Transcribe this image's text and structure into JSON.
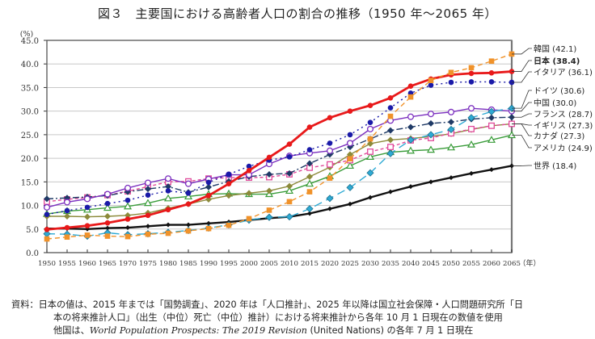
{
  "chart_data": {
    "type": "line",
    "title": "図３　主要国における高齢者人口の割合の推移（1950 年～2065 年）",
    "ylabel": "(%)",
    "xlabel": "（年）",
    "ylim": [
      0,
      45
    ],
    "yticks": [
      "0.0",
      "5.0",
      "10.0",
      "15.0",
      "20.0",
      "25.0",
      "30.0",
      "35.0",
      "40.0",
      "45.0"
    ],
    "x": [
      1950,
      1955,
      1960,
      1965,
      1970,
      1975,
      1980,
      1985,
      1990,
      1995,
      2000,
      2005,
      2010,
      2015,
      2020,
      2025,
      2030,
      2035,
      2040,
      2045,
      2050,
      2055,
      2060,
      2065
    ],
    "grid": "horizontal",
    "legend": "right-side labels",
    "series": [
      {
        "name": "韓国",
        "label": "韓国 (42.1)",
        "color": "#f0922a",
        "dash": "6,4",
        "marker": "square-filled",
        "values": [
          2.9,
          3.3,
          3.7,
          3.5,
          3.4,
          3.9,
          4.1,
          4.6,
          5.1,
          5.8,
          7.2,
          9.0,
          10.8,
          12.9,
          15.8,
          19.9,
          24.1,
          28.9,
          33.0,
          36.5,
          38.2,
          39.2,
          40.6,
          42.1
        ]
      },
      {
        "name": "日本",
        "label": "日本 (38.4)",
        "color": "#e8191a",
        "dash": "",
        "marker": "circle-filled",
        "bold": true,
        "values": [
          4.9,
          5.3,
          5.7,
          6.3,
          7.1,
          7.9,
          9.1,
          10.3,
          12.1,
          14.6,
          17.4,
          20.2,
          23.0,
          26.6,
          28.6,
          30.0,
          31.2,
          32.8,
          35.3,
          36.8,
          37.7,
          38.0,
          38.1,
          38.4
        ]
      },
      {
        "name": "イタリア",
        "label": "イタリア (36.1)",
        "color": "#1a1aa8",
        "dash": "2,4",
        "marker": "circle-filled",
        "values": [
          8.1,
          8.9,
          9.6,
          10.4,
          11.1,
          12.2,
          13.1,
          12.6,
          14.9,
          16.6,
          18.3,
          19.6,
          20.3,
          21.8,
          23.2,
          25.0,
          27.6,
          30.7,
          33.8,
          35.5,
          36.1,
          36.2,
          36.2,
          36.1
        ]
      },
      {
        "name": "ドイツ",
        "label": "ドイツ (30.6)",
        "color": "#2eaad4",
        "dash": "10,6",
        "marker": "diamond-filled",
        "values": [
          4.0,
          3.9,
          3.5,
          4.2,
          3.8,
          4.0,
          4.3,
          4.7,
          5.2,
          5.9,
          6.9,
          7.5,
          7.6,
          9.3,
          11.5,
          13.8,
          16.9,
          21.0,
          23.9,
          25.0,
          26.1,
          28.6,
          29.9,
          30.6
        ]
      },
      {
        "name": "中国",
        "label": "中国 (30.0)",
        "color": "#7b2fbf",
        "dash": "",
        "marker": "circle-open",
        "values": [
          9.6,
          10.7,
          11.4,
          12.4,
          13.7,
          14.8,
          15.7,
          14.6,
          15.6,
          16.5,
          16.5,
          18.8,
          20.5,
          21.1,
          21.6,
          23.2,
          26.2,
          28.0,
          28.8,
          29.4,
          29.8,
          30.6,
          30.3,
          30.0
        ]
      },
      {
        "name": "フランス",
        "label": "フランス (28.7)",
        "color": "#1f3a66",
        "dash": "8,3,2,3",
        "marker": "diamond-filled",
        "values": [
          11.4,
          11.6,
          11.8,
          12.1,
          12.9,
          13.5,
          14.0,
          12.8,
          13.9,
          15.1,
          16.1,
          16.6,
          16.8,
          18.9,
          20.8,
          22.4,
          24.1,
          25.9,
          26.6,
          27.4,
          27.7,
          28.3,
          28.6,
          28.7
        ]
      },
      {
        "name": "イギリス",
        "label": "イギリス (27.3)",
        "color": "#e04a9a",
        "dash": "4,3",
        "marker": "square-open",
        "values": [
          10.8,
          11.3,
          11.7,
          12.2,
          13.0,
          14.0,
          15.0,
          15.1,
          15.7,
          15.9,
          15.9,
          16.0,
          16.6,
          18.0,
          18.7,
          19.6,
          21.4,
          22.4,
          23.8,
          24.3,
          25.3,
          26.2,
          26.9,
          27.3
        ]
      },
      {
        "name": "カナダ",
        "label": "カナダ (27.3)",
        "color": "#8c8a3a",
        "dash": "",
        "marker": "diamond-filled",
        "values": [
          7.7,
          7.7,
          7.6,
          7.7,
          7.9,
          8.4,
          9.4,
          10.3,
          11.3,
          12.1,
          12.6,
          13.1,
          14.1,
          16.1,
          18.1,
          20.8,
          23.1,
          23.9,
          24.2,
          24.6,
          25.2,
          26.1,
          26.9,
          27.3
        ]
      },
      {
        "name": "アメリカ",
        "label": "アメリカ (24.9)",
        "color": "#3a9c3a",
        "dash": "",
        "marker": "triangle-open",
        "values": [
          8.2,
          8.8,
          9.1,
          9.5,
          9.8,
          10.5,
          11.5,
          11.9,
          12.4,
          12.5,
          12.4,
          12.4,
          13.1,
          14.6,
          16.2,
          18.4,
          20.3,
          21.3,
          21.6,
          21.8,
          22.3,
          22.9,
          23.9,
          24.9
        ]
      },
      {
        "name": "世界",
        "label": "世界 (18.4)",
        "color": "#111111",
        "dash": "",
        "marker": "diamond-small",
        "bold": true,
        "values": [
          5.1,
          5.1,
          5.0,
          5.2,
          5.3,
          5.6,
          5.9,
          5.9,
          6.2,
          6.5,
          6.9,
          7.3,
          7.6,
          8.3,
          9.3,
          10.3,
          11.7,
          12.9,
          14.0,
          15.0,
          15.9,
          16.8,
          17.6,
          18.4
        ]
      }
    ]
  },
  "notes": {
    "prefix": "資料：",
    "line1": "日本の値は、2015 年までは「国勢調査」、2020 年は「人口推計」、2025 年以降は国立社会保障・人口問題研究所「日",
    "line2": "本の将来推計人口」（出生（中位）死亡（中位）推計）における将来推計から各年 10 月 1 日現在の数値を使用",
    "line3_a": "他国は、",
    "line3_italic": "World Population Prospects: The 2019 Revision",
    "line3_b": " (United Nations) の各年 7 月 1 日現在"
  }
}
